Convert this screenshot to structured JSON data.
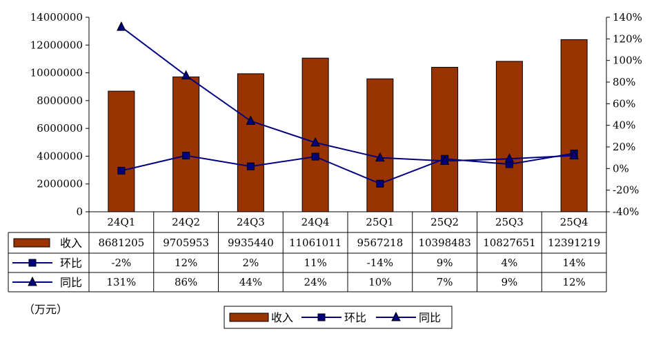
{
  "chart_data": {
    "type": "bar+line",
    "title": "",
    "unit_note": "（万元）",
    "categories": [
      "24Q1",
      "24Q2",
      "24Q3",
      "24Q4",
      "25Q1",
      "25Q2",
      "25Q3",
      "25Q4"
    ],
    "y_left": {
      "min": 0,
      "max": 14000000,
      "step": 2000000,
      "ticks": [
        "0",
        "2000000",
        "4000000",
        "6000000",
        "8000000",
        "10000000",
        "12000000",
        "14000000"
      ]
    },
    "y_right": {
      "min": -40,
      "max": 140,
      "step": 20,
      "ticks": [
        "-40%",
        "-20%",
        "0%",
        "20%",
        "40%",
        "60%",
        "80%",
        "100%",
        "120%",
        "140%"
      ]
    },
    "series": [
      {
        "name": "收入",
        "type": "bar",
        "axis": "left",
        "color": "#993300",
        "values": [
          8681205,
          9705953,
          9935440,
          11061011,
          9567218,
          10398483,
          10827651,
          12391219
        ],
        "labels": [
          "8681205",
          "9705953",
          "9935440",
          "11061011",
          "9567218",
          "10398483",
          "10827651",
          "12391219"
        ]
      },
      {
        "name": "环比",
        "type": "line",
        "axis": "right",
        "color": "#000080",
        "marker": "square",
        "values": [
          -2,
          12,
          2,
          11,
          -14,
          9,
          4,
          14
        ],
        "labels": [
          "-2%",
          "12%",
          "2%",
          "11%",
          "-14%",
          "9%",
          "4%",
          "14%"
        ]
      },
      {
        "name": "同比",
        "type": "line",
        "axis": "right",
        "color": "#000080",
        "marker": "triangle",
        "values": [
          131,
          86,
          44,
          24,
          10,
          7,
          9,
          12
        ],
        "labels": [
          "131%",
          "86%",
          "44%",
          "24%",
          "10%",
          "7%",
          "9%",
          "12%"
        ]
      }
    ],
    "legend": {
      "position": "bottom-center",
      "items": [
        "收入",
        "环比",
        "同比"
      ]
    },
    "grid": false
  }
}
